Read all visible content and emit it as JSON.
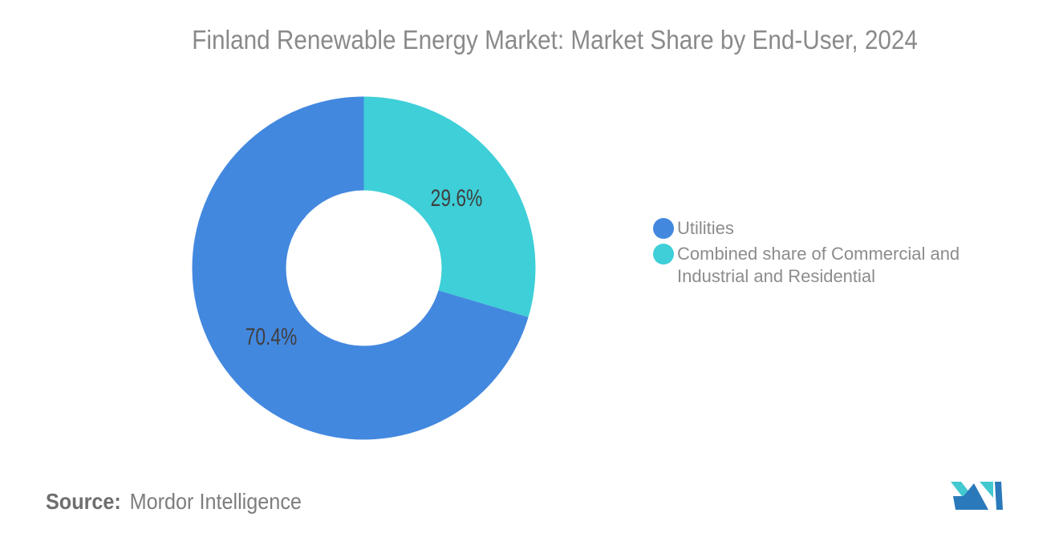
{
  "header": {
    "title": "Finland Renewable Energy Market: Market Share by End-User, 2024"
  },
  "chart_data": {
    "type": "pie",
    "subtype": "donut",
    "title": "Finland Renewable Energy Market: Market Share by End-User, 2024",
    "series": [
      {
        "name": "Utilities",
        "value": 70.4,
        "label": "70.4%",
        "color": "#4388DF"
      },
      {
        "name": "Combined share of Commercial and Industrial and Residential",
        "value": 29.6,
        "label": "29.6%",
        "color": "#3ECFD8"
      }
    ],
    "segment_order_clockwise_from_top": [
      1,
      0
    ],
    "inner_radius_ratio": 0.45,
    "data_labels": "percent_inside_slices",
    "legend_position": "right",
    "grid": false
  },
  "legend": {
    "items": [
      {
        "label": "Utilities",
        "color": "#4388DF"
      },
      {
        "label": "Combined share of Commercial and Industrial and Residential",
        "color": "#3ECFD8"
      }
    ]
  },
  "source": {
    "prefix": "Source:",
    "text": "Mordor Intelligence"
  },
  "logo": {
    "name": "mordor-intelligence-logo",
    "blue": "#2A79BA",
    "teal": "#42C9D0"
  }
}
